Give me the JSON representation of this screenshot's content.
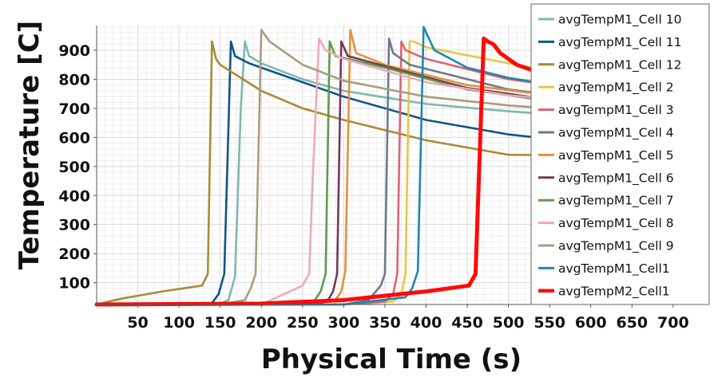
{
  "chart_data": {
    "type": "line",
    "title": "",
    "xlabel": "Physical Time (s)",
    "ylabel": "Temperature [C]",
    "xlim": [
      0,
      705
    ],
    "ylim": [
      25,
      985
    ],
    "xticks": [
      50,
      100,
      150,
      200,
      250,
      300,
      350,
      400,
      450,
      500,
      550,
      600,
      650,
      700
    ],
    "yticks": [
      100,
      200,
      300,
      400,
      500,
      600,
      700,
      800,
      900
    ],
    "grid": true,
    "legend_position": "right",
    "series": [
      {
        "name": "avgTempM1_Cell 10",
        "color": "#7fb8ae",
        "width": 2.6,
        "x": [
          0,
          100,
          150,
          160,
          168,
          175,
          180,
          185,
          200,
          250,
          300,
          400,
          500,
          600,
          705
        ],
        "y": [
          25,
          25,
          28,
          40,
          120,
          700,
          930,
          880,
          855,
          800,
          760,
          715,
          690,
          670,
          655
        ]
      },
      {
        "name": "avgTempM1_Cell 11",
        "color": "#0e5784",
        "width": 2.6,
        "x": [
          0,
          100,
          140,
          148,
          155,
          163,
          168,
          185,
          250,
          300,
          400,
          500,
          600,
          705
        ],
        "y": [
          25,
          25,
          30,
          60,
          130,
          930,
          880,
          855,
          790,
          740,
          660,
          610,
          580,
          570
        ]
      },
      {
        "name": "avgTempM1_Cell 12",
        "color": "#a88b34",
        "width": 2.6,
        "x": [
          0,
          30,
          80,
          128,
          135,
          140,
          145,
          150,
          200,
          250,
          300,
          400,
          500,
          705
        ],
        "y": [
          25,
          45,
          70,
          90,
          130,
          930,
          870,
          850,
          760,
          700,
          660,
          590,
          540,
          535
        ]
      },
      {
        "name": "avgTempM1_Cell 2",
        "color": "#e8c547",
        "width": 2.6,
        "x": [
          0,
          300,
          360,
          370,
          375,
          380,
          385,
          400,
          500,
          600,
          705
        ],
        "y": [
          25,
          25,
          35,
          60,
          130,
          930,
          930,
          910,
          855,
          805,
          780
        ]
      },
      {
        "name": "avgTempM1_Cell 3",
        "color": "#d9666f",
        "width": 2.6,
        "x": [
          0,
          300,
          350,
          360,
          365,
          370,
          375,
          400,
          500,
          600,
          705
        ],
        "y": [
          25,
          25,
          35,
          60,
          130,
          930,
          900,
          870,
          800,
          760,
          735
        ]
      },
      {
        "name": "avgTempM1_Cell 4",
        "color": "#6b7a8a",
        "width": 2.6,
        "x": [
          0,
          300,
          330,
          345,
          350,
          355,
          360,
          380,
          500,
          600,
          705
        ],
        "y": [
          25,
          25,
          40,
          90,
          130,
          940,
          890,
          850,
          765,
          730,
          715
        ]
      },
      {
        "name": "avgTempM1_Cell 5",
        "color": "#e6913a",
        "width": 2.6,
        "x": [
          0,
          250,
          290,
          297,
          302,
          308,
          315,
          350,
          450,
          550,
          705
        ],
        "y": [
          25,
          25,
          40,
          70,
          140,
          970,
          890,
          850,
          780,
          745,
          710
        ]
      },
      {
        "name": "avgTempM1_Cell 6",
        "color": "#6f3a5a",
        "width": 2.6,
        "x": [
          0,
          250,
          280,
          287,
          292,
          297,
          305,
          350,
          450,
          550,
          705
        ],
        "y": [
          25,
          25,
          35,
          70,
          130,
          930,
          880,
          845,
          770,
          730,
          700
        ]
      },
      {
        "name": "avgTempM1_Cell 7",
        "color": "#5e9a4d",
        "width": 2.6,
        "x": [
          0,
          240,
          265,
          272,
          278,
          283,
          290,
          350,
          450,
          550,
          705
        ],
        "y": [
          25,
          25,
          40,
          70,
          130,
          930,
          880,
          840,
          765,
          725,
          705
        ]
      },
      {
        "name": "avgTempM1_Cell 8",
        "color": "#eeaab5",
        "width": 2.6,
        "x": [
          0,
          200,
          250,
          258,
          263,
          270,
          278,
          300,
          400,
          500,
          600,
          705
        ],
        "y": [
          25,
          25,
          90,
          130,
          500,
          940,
          900,
          870,
          790,
          745,
          720,
          705
        ]
      },
      {
        "name": "avgTempM1_Cell 9",
        "color": "#aa9c80",
        "width": 2.6,
        "x": [
          0,
          150,
          180,
          187,
          193,
          200,
          210,
          250,
          300,
          400,
          500,
          600,
          705
        ],
        "y": [
          25,
          25,
          40,
          80,
          130,
          970,
          930,
          850,
          795,
          740,
          710,
          690,
          680
        ]
      },
      {
        "name": "avgTempM1_Cell1",
        "color": "#1f86b0",
        "width": 2.6,
        "x": [
          0,
          300,
          375,
          383,
          390,
          397,
          410,
          450,
          500,
          600,
          705
        ],
        "y": [
          25,
          25,
          50,
          80,
          140,
          980,
          900,
          840,
          805,
          760,
          735
        ]
      },
      {
        "name": "avgTempM2_Cell1",
        "color": "#ff0a0a",
        "width": 5,
        "x": [
          0,
          200,
          300,
          400,
          452,
          460,
          470,
          475,
          482,
          490,
          510,
          560,
          620,
          705
        ],
        "y": [
          25,
          28,
          40,
          70,
          90,
          130,
          940,
          930,
          920,
          890,
          850,
          800,
          760,
          720
        ]
      }
    ]
  }
}
